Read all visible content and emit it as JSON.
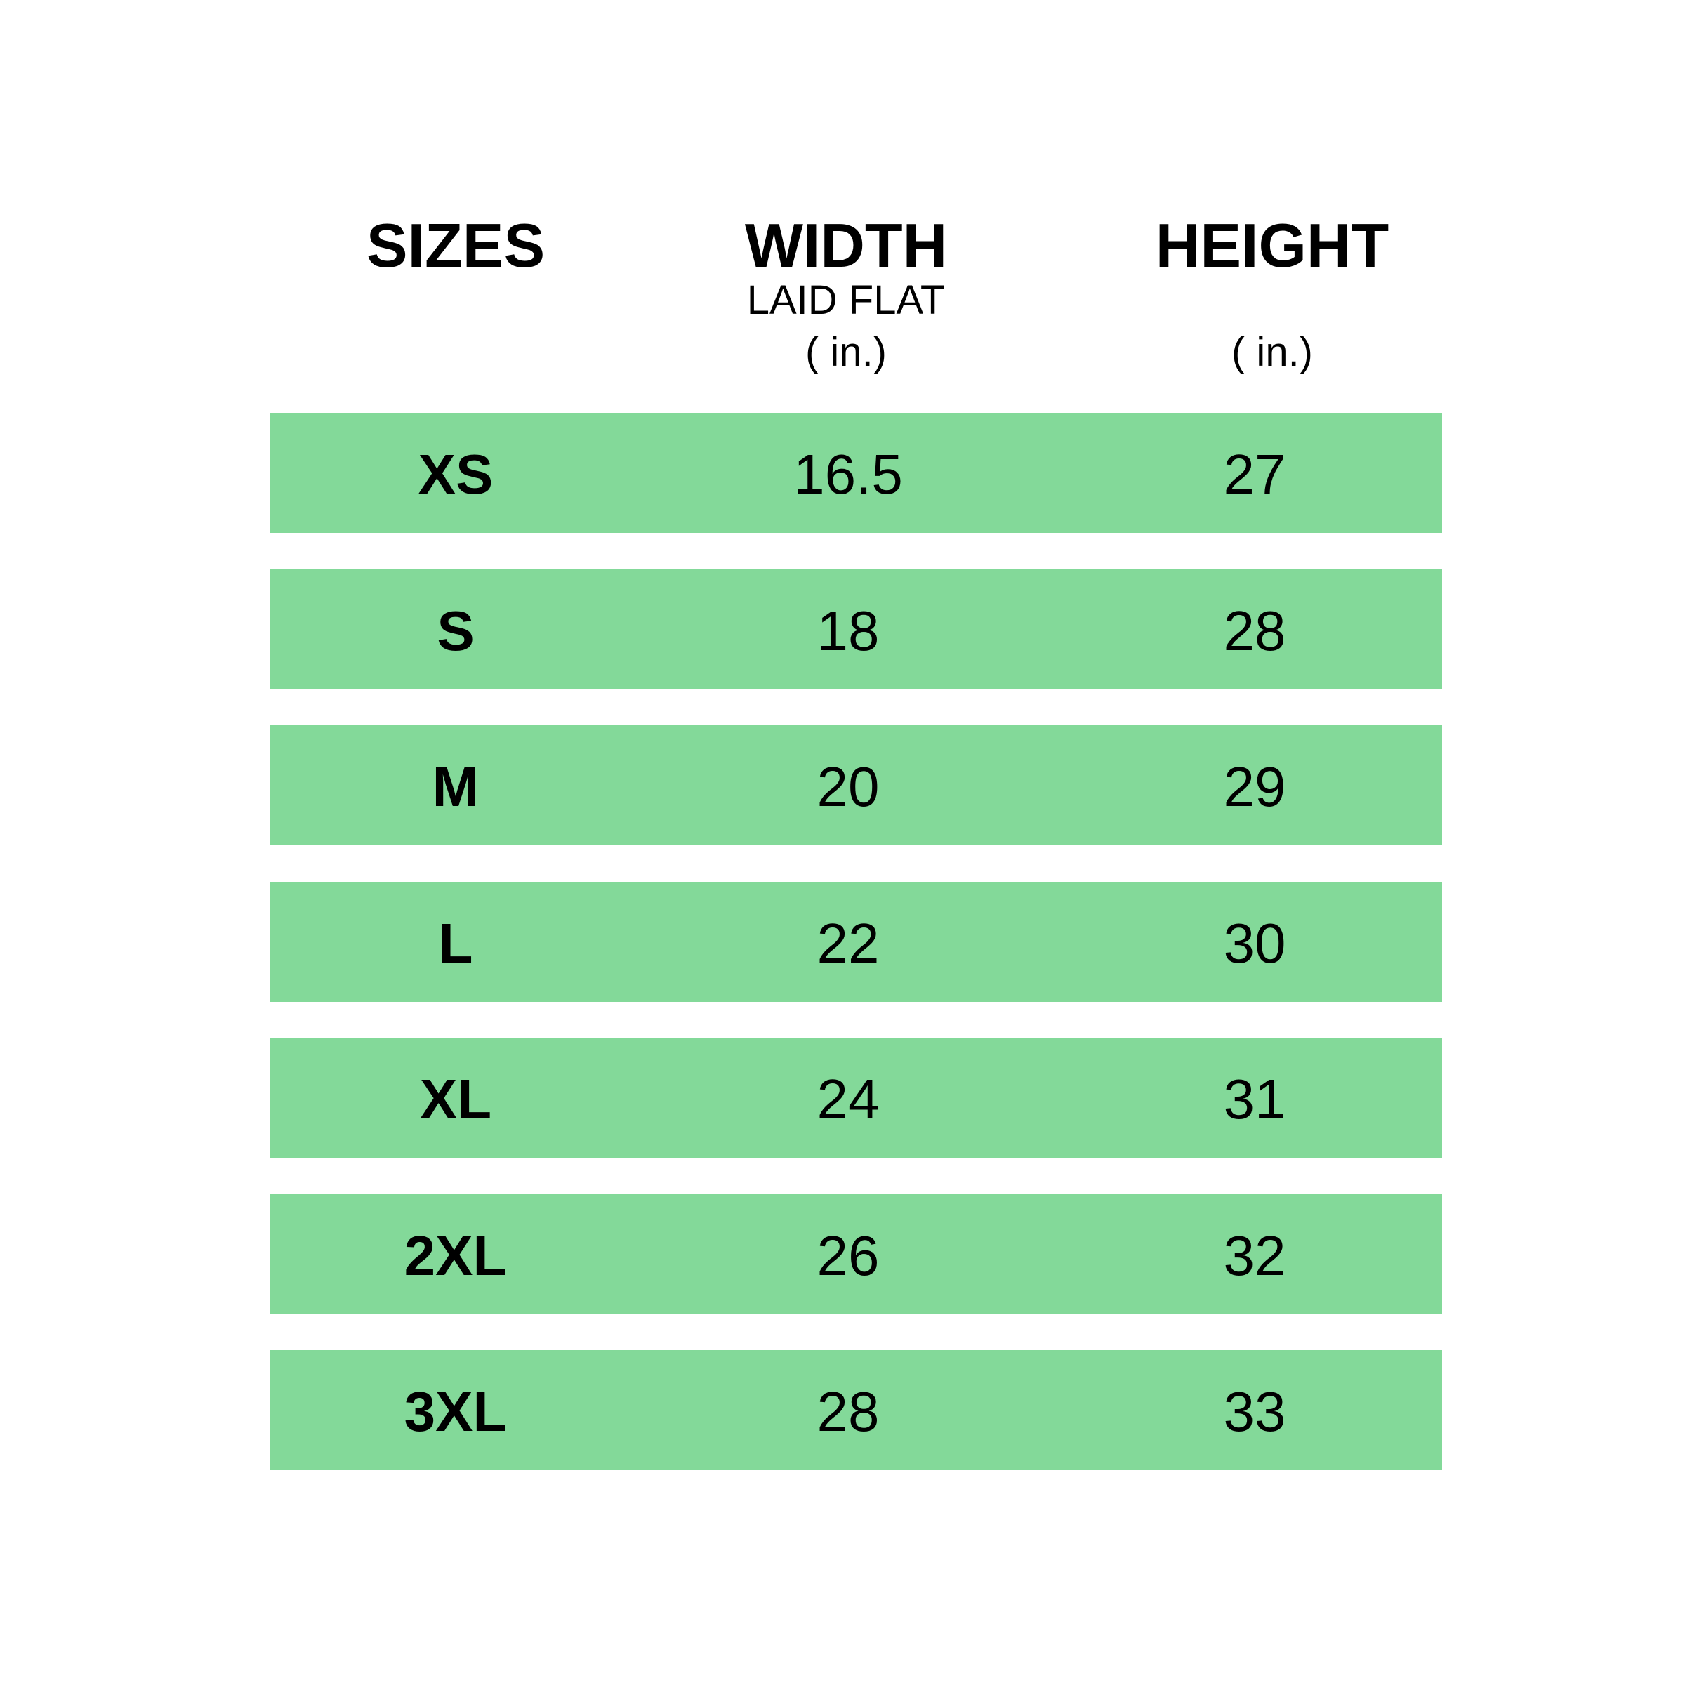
{
  "table": {
    "headers": [
      {
        "title": "SIZES"
      },
      {
        "title": "WIDTH",
        "subtitle": "LAID FLAT",
        "unit": "( in.)"
      },
      {
        "title": "HEIGHT",
        "unit": "( in.)"
      }
    ],
    "rows": [
      [
        "XS",
        16.5,
        27
      ],
      [
        "S",
        18,
        28
      ],
      [
        "M",
        20,
        29
      ],
      [
        "L",
        22,
        30
      ],
      [
        "XL",
        24,
        31
      ],
      [
        "2XL",
        26,
        32
      ],
      [
        "3XL",
        28,
        33
      ]
    ]
  }
}
